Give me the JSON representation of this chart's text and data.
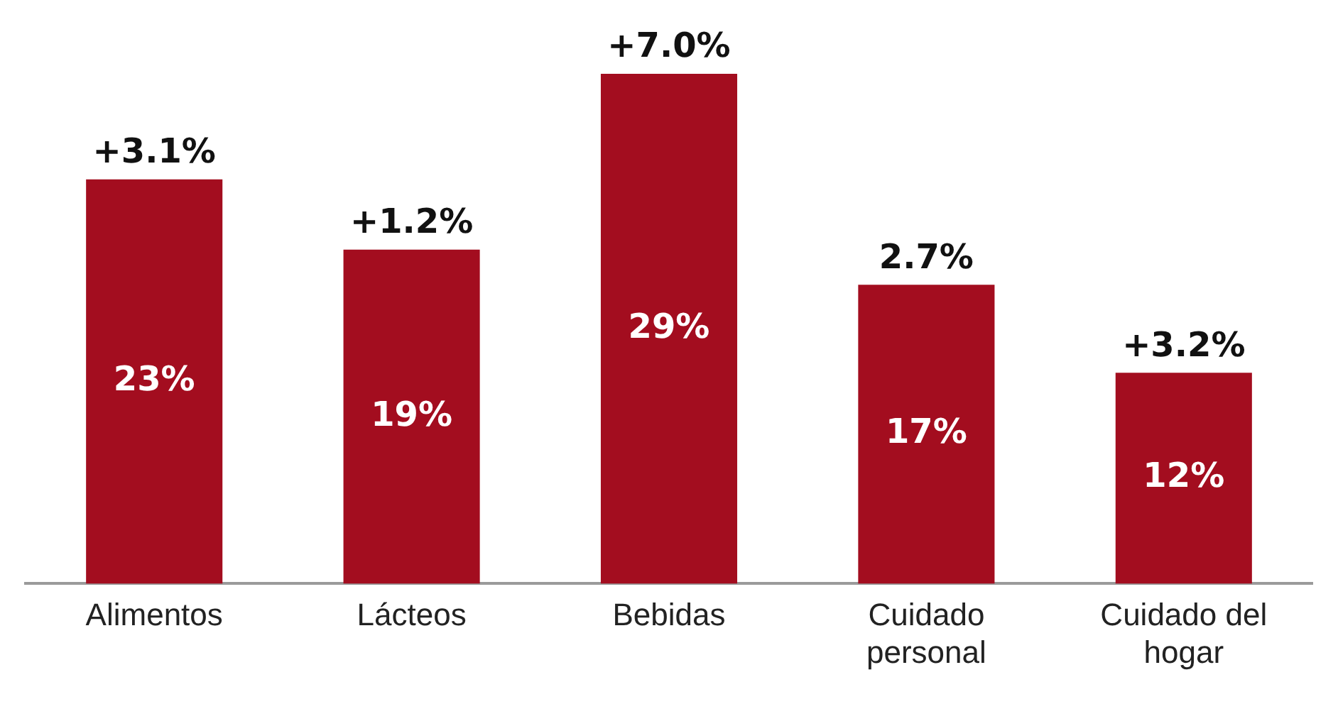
{
  "chart_data": {
    "type": "bar",
    "categories": [
      "Alimentos",
      "Lácteos",
      "Bebidas",
      "Cuidado personal",
      "Cuidado del hogar"
    ],
    "values": [
      23,
      19,
      29,
      17,
      12
    ],
    "value_labels": [
      "23%",
      "19%",
      "29%",
      "17%",
      "12%"
    ],
    "color": "#a30d1f",
    "grid": false,
    "legend": false,
    "annotations": [
      {
        "text": "+3.1%",
        "x": "Alimentos",
        "y": 23
      },
      {
        "text": "+1.2%",
        "x": "Lácteos",
        "y": 19
      },
      {
        "text": "+7.0%",
        "x": "Bebidas",
        "y": 29
      },
      {
        "text": "2.7%",
        "x": "Cuidado personal",
        "y": 17
      },
      {
        "text": "+3.2%",
        "x": "Cuidado del hogar",
        "y": 12
      }
    ]
  }
}
